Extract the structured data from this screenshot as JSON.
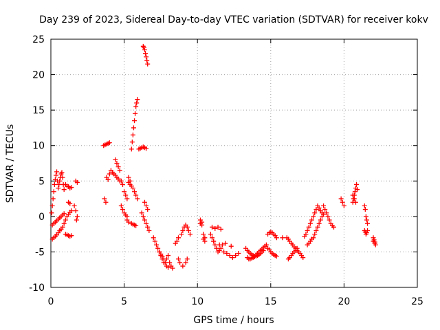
{
  "chart_data": {
    "type": "scatter",
    "title": "Day 239 of 2023, Sidereal Day-to-day VTEC variation (SDTVAR) for receiver kokv",
    "xlabel": "GPS time / hours",
    "ylabel": "SDTVAR / TECUs",
    "xlim": [
      0,
      25
    ],
    "ylim": [
      -10,
      25
    ],
    "xticks": [
      0,
      5,
      10,
      15,
      20,
      25
    ],
    "yticks": [
      -10,
      -5,
      0,
      5,
      10,
      15,
      20,
      25
    ],
    "grid": true,
    "marker": "+",
    "color": "#ff0000",
    "series": [
      {
        "name": "SDTVAR",
        "x": [
          0.05,
          0.1,
          0.15,
          0.2,
          0.25,
          0.3,
          0.35,
          0.4,
          0.45,
          0.5,
          0.55,
          0.6,
          0.65,
          0.7,
          0.75,
          0.8,
          0.85,
          0.9,
          0.1,
          0.2,
          0.3,
          0.4,
          0.5,
          0.6,
          0.7,
          0.8,
          0.9,
          1.0,
          1.1,
          1.2,
          1.3,
          1.4,
          0.1,
          0.2,
          0.3,
          0.4,
          0.5,
          0.6,
          0.7,
          0.8,
          0.9,
          1.0,
          1.1,
          1.2,
          1.3,
          1.4,
          1.2,
          1.3,
          1.0,
          1.1,
          1.2,
          1.3,
          1.4,
          1.6,
          1.7,
          1.8,
          1.7,
          1.8,
          1.75,
          3.6,
          3.7,
          3.8,
          3.9,
          4.0,
          3.65,
          3.75,
          3.8,
          3.9,
          4.0,
          4.1,
          4.2,
          4.3,
          4.4,
          4.5,
          4.6,
          4.7,
          4.4,
          4.5,
          4.6,
          4.7,
          4.8,
          4.9,
          5.0,
          5.1,
          5.2,
          4.8,
          4.9,
          5.0,
          5.1,
          5.2,
          5.3,
          5.4,
          5.3,
          5.4,
          5.5,
          5.6,
          5.7,
          5.8,
          5.9,
          5.5,
          5.55,
          5.6,
          5.65,
          5.7,
          5.75,
          5.8,
          5.85,
          5.9,
          5.2,
          5.3,
          5.5,
          5.6,
          5.7,
          5.8,
          6.0,
          6.1,
          6.2,
          6.3,
          6.4,
          6.5,
          6.3,
          6.35,
          6.4,
          6.45,
          6.5,
          6.55,
          6.6,
          6.4,
          6.5,
          6.6,
          6.2,
          6.3,
          6.4,
          6.5,
          6.6,
          6.7,
          7.0,
          7.1,
          7.2,
          7.3,
          7.4,
          7.5,
          7.6,
          7.7,
          7.8,
          7.9,
          8.0,
          8.1,
          8.2,
          8.3,
          7.4,
          7.5,
          7.6,
          7.7,
          7.8,
          7.9,
          8.0,
          8.5,
          8.6,
          8.7,
          8.9,
          9.0,
          9.1,
          9.2,
          9.3,
          9.4,
          9.5,
          8.7,
          8.8,
          9.0,
          9.2,
          9.3,
          10.2,
          10.3,
          10.4,
          10.5,
          10.2,
          10.3,
          10.4,
          10.5,
          10.9,
          11.0,
          11.1,
          11.2,
          11.3,
          11.4,
          11.5,
          11.6,
          11.7,
          11.0,
          11.2,
          11.4,
          11.6,
          11.8,
          12.0,
          12.2,
          12.4,
          12.6,
          12.8,
          11.1,
          11.5,
          11.9,
          12.3,
          13.3,
          13.4,
          13.5,
          13.6,
          13.7,
          13.8,
          13.9,
          14.0,
          14.1,
          14.2,
          14.3,
          14.4,
          14.5,
          14.6,
          14.7,
          13.4,
          13.5,
          13.6,
          13.7,
          13.8,
          13.9,
          14.0,
          14.1,
          14.2,
          14.3,
          14.4,
          14.5,
          14.8,
          14.9,
          15.0,
          15.1,
          15.2,
          15.3,
          15.4,
          14.8,
          14.9,
          15.0,
          15.1,
          15.2,
          15.3,
          15.4,
          15.8,
          16.1,
          16.2,
          16.3,
          16.4,
          16.5,
          16.6,
          16.7,
          16.8,
          16.9,
          17.0,
          17.1,
          17.2,
          16.2,
          16.3,
          16.4,
          16.5,
          16.6,
          16.7,
          16.8,
          17.3,
          17.4,
          17.5,
          17.6,
          17.7,
          17.8,
          17.9,
          18.0,
          18.1,
          18.2,
          18.3,
          18.4,
          18.5,
          18.6,
          17.5,
          17.6,
          17.7,
          17.8,
          17.9,
          18.0,
          18.1,
          18.2,
          18.3,
          18.4,
          18.5,
          18.6,
          18.7,
          18.8,
          18.9,
          19.0,
          19.1,
          19.2,
          19.3,
          19.8,
          19.9,
          20.0,
          20.6,
          20.65,
          20.7,
          20.75,
          20.8,
          20.85,
          20.9,
          20.6,
          20.7,
          20.8,
          21.4,
          21.45,
          21.5,
          21.55,
          21.6,
          21.4,
          21.45,
          21.5,
          21.55,
          21.6,
          22.0,
          22.05,
          22.1,
          22.15,
          22.0,
          22.1
        ],
        "y": [
          0.5,
          1.5,
          2.5,
          3.5,
          4.5,
          5.2,
          5.8,
          6.3,
          5.0,
          4.0,
          4.5,
          5.0,
          5.5,
          6.0,
          6.2,
          5.5,
          4.5,
          3.8,
          -3.2,
          -3.0,
          -2.8,
          -2.6,
          -2.3,
          -2.0,
          -1.8,
          -1.5,
          -1.0,
          -0.5,
          0.0,
          0.3,
          0.6,
          0.8,
          -1.2,
          -1.0,
          -0.8,
          -0.6,
          -0.4,
          -0.2,
          0.0,
          0.2,
          0.4,
          4.5,
          4.3,
          4.2,
          4.0,
          4.1,
          2.0,
          1.8,
          -2.5,
          -2.6,
          -2.7,
          -2.8,
          -2.7,
          1.5,
          0.8,
          0.0,
          5.0,
          4.8,
          -0.5,
          10.0,
          10.1,
          10.2,
          10.3,
          10.4,
          2.5,
          2.0,
          5.5,
          5.2,
          6.0,
          6.5,
          6.2,
          6.0,
          5.8,
          5.5,
          5.3,
          5.0,
          8.0,
          7.5,
          7.0,
          6.5,
          5.0,
          4.5,
          3.5,
          3.0,
          2.5,
          1.5,
          1.0,
          0.5,
          0.2,
          0.0,
          5.5,
          5.0,
          4.8,
          4.5,
          4.3,
          4.0,
          3.5,
          3.0,
          2.5,
          9.5,
          10.5,
          11.5,
          12.5,
          13.5,
          14.5,
          15.5,
          16.0,
          16.5,
          -0.5,
          -0.8,
          -1.0,
          -1.1,
          -1.2,
          -1.3,
          9.5,
          9.6,
          9.7,
          9.8,
          9.7,
          9.6,
          24.0,
          23.8,
          23.5,
          23.0,
          22.5,
          22.0,
          21.5,
          2.0,
          1.5,
          1.0,
          0.5,
          0.0,
          -0.5,
          -1.0,
          -1.5,
          -2.0,
          -3.0,
          -3.5,
          -4.0,
          -4.5,
          -5.0,
          -5.5,
          -6.0,
          -6.5,
          -6.5,
          -6.0,
          -5.5,
          -6.5,
          -7.0,
          -7.3,
          -5.0,
          -5.3,
          -5.6,
          -6.0,
          -6.5,
          -7.0,
          -7.2,
          -3.8,
          -3.5,
          -3.0,
          -2.5,
          -2.0,
          -1.5,
          -1.2,
          -1.5,
          -2.0,
          -2.5,
          -6.0,
          -6.5,
          -7.0,
          -6.5,
          -6.0,
          -0.5,
          -0.8,
          -2.5,
          -3.0,
          -1.0,
          -1.2,
          -3.2,
          -3.5,
          -2.5,
          -3.0,
          -3.5,
          -4.0,
          -4.5,
          -5.0,
          -4.8,
          -4.5,
          -4.0,
          -1.5,
          -1.7,
          -1.5,
          -1.8,
          -5.0,
          -5.2,
          -5.5,
          -5.8,
          -5.5,
          -5.2,
          -3.5,
          -4.0,
          -3.8,
          -4.2,
          -4.5,
          -4.8,
          -5.0,
          -5.2,
          -5.4,
          -5.5,
          -5.6,
          -5.4,
          -5.2,
          -5.0,
          -4.8,
          -4.6,
          -4.4,
          -4.2,
          -4.0,
          -5.8,
          -6.0,
          -6.0,
          -5.9,
          -5.8,
          -5.7,
          -5.6,
          -5.5,
          -5.4,
          -5.2,
          -5.0,
          -4.8,
          -2.5,
          -2.3,
          -2.2,
          -2.3,
          -2.5,
          -2.7,
          -3.0,
          -4.5,
          -4.7,
          -5.0,
          -5.2,
          -5.4,
          -5.5,
          -5.6,
          -3.0,
          -3.0,
          -3.2,
          -3.5,
          -3.8,
          -4.0,
          -4.3,
          -4.5,
          -4.8,
          -5.0,
          -5.2,
          -5.5,
          -5.8,
          -6.0,
          -5.8,
          -5.5,
          -5.2,
          -5.0,
          -4.8,
          -4.5,
          -2.8,
          -2.5,
          -2.0,
          -1.5,
          -1.0,
          -0.5,
          0.0,
          0.5,
          1.0,
          1.5,
          1.2,
          0.8,
          0.5,
          0.3,
          -4.0,
          -3.8,
          -3.5,
          -3.2,
          -3.0,
          -2.5,
          -2.0,
          -1.5,
          -1.0,
          -0.5,
          0.0,
          1.5,
          1.0,
          0.5,
          0.0,
          -0.5,
          -1.0,
          -1.3,
          -1.5,
          2.5,
          2.0,
          1.5,
          2.0,
          2.5,
          3.0,
          3.5,
          4.0,
          4.5,
          3.8,
          3.0,
          2.5,
          2.0,
          1.5,
          1.0,
          0.0,
          -0.5,
          -1.0,
          -2.0,
          -2.2,
          -2.5,
          -2.3,
          -2.0,
          -3.0,
          -3.3,
          -3.6,
          -4.0,
          -3.5,
          -3.8
        ]
      }
    ]
  }
}
